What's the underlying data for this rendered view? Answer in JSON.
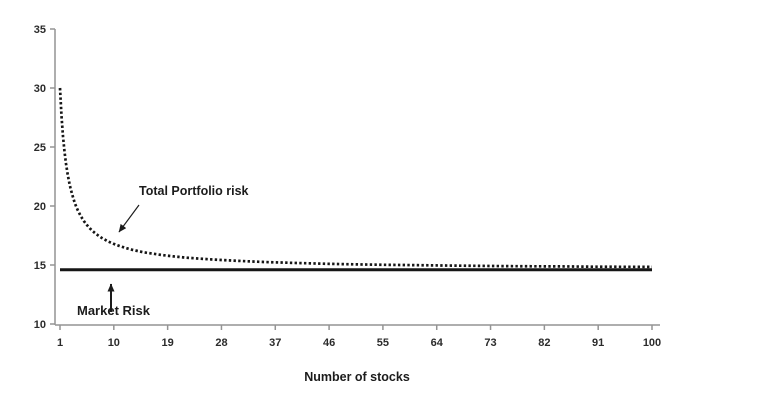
{
  "chart_data": {
    "type": "line",
    "title": "",
    "xlabel": "Number of stocks",
    "ylabel": "",
    "xlim": [
      1,
      100
    ],
    "ylim": [
      10,
      35
    ],
    "x_ticks": [
      1,
      10,
      19,
      28,
      37,
      46,
      55,
      64,
      73,
      82,
      91,
      100
    ],
    "y_ticks": [
      10,
      15,
      20,
      25,
      30,
      35
    ],
    "grid": false,
    "legend_position": "none",
    "series": [
      {
        "name": "Total Portfolio risk",
        "style": "dotted",
        "color": "#161616",
        "points": [
          [
            1,
            30.0
          ],
          [
            1.25,
            27.62
          ],
          [
            1.5,
            25.9
          ],
          [
            1.75,
            24.61
          ],
          [
            2,
            23.59
          ],
          [
            2.25,
            22.76
          ],
          [
            2.5,
            22.09
          ],
          [
            2.75,
            21.51
          ],
          [
            3,
            21.03
          ],
          [
            3.25,
            20.6
          ],
          [
            3.5,
            20.23
          ],
          [
            3.75,
            19.91
          ],
          [
            4,
            19.62
          ],
          [
            4.5,
            19.13
          ],
          [
            5,
            18.72
          ],
          [
            5.5,
            18.39
          ],
          [
            6,
            18.1
          ],
          [
            6.5,
            17.86
          ],
          [
            7,
            17.64
          ],
          [
            7.5,
            17.46
          ],
          [
            8,
            17.29
          ],
          [
            8.5,
            17.15
          ],
          [
            9,
            17.01
          ],
          [
            9.5,
            16.9
          ],
          [
            10,
            16.79
          ],
          [
            11,
            16.6
          ],
          [
            12,
            16.44
          ],
          [
            13,
            16.3
          ],
          [
            14,
            16.19
          ],
          [
            15,
            16.08
          ],
          [
            16,
            16.0
          ],
          [
            17,
            15.92
          ],
          [
            18,
            15.85
          ],
          [
            19,
            15.79
          ],
          [
            20,
            15.73
          ],
          [
            22,
            15.63
          ],
          [
            24,
            15.55
          ],
          [
            26,
            15.48
          ],
          [
            28,
            15.42
          ],
          [
            30,
            15.37
          ],
          [
            32,
            15.32
          ],
          [
            34,
            15.28
          ],
          [
            36,
            15.24
          ],
          [
            38,
            15.21
          ],
          [
            40,
            15.18
          ],
          [
            42,
            15.15
          ],
          [
            45,
            15.11
          ],
          [
            48,
            15.08
          ],
          [
            50,
            15.06
          ],
          [
            55,
            15.02
          ],
          [
            60,
            14.99
          ],
          [
            65,
            14.96
          ],
          [
            70,
            14.93
          ],
          [
            75,
            14.91
          ],
          [
            80,
            14.89
          ],
          [
            85,
            14.88
          ],
          [
            90,
            14.86
          ],
          [
            95,
            14.85
          ],
          [
            100,
            14.84
          ]
        ]
      },
      {
        "name": "Market Risk",
        "style": "solid",
        "color": "#161616",
        "points": [
          [
            1,
            14.6
          ],
          [
            100,
            14.6
          ]
        ]
      }
    ],
    "annotations": [
      {
        "text": "Total Portfolio risk",
        "arrow": "points down-left to the dotted curve near n=10"
      },
      {
        "text": "Market Risk",
        "arrow": "points up to the solid horizontal market-risk line"
      }
    ]
  },
  "colors": {
    "background": "#ffffff",
    "axis": "#949494",
    "tick_text": "#2b2b2b",
    "line": "#161616",
    "annotation_text": "#1c1c1c"
  }
}
